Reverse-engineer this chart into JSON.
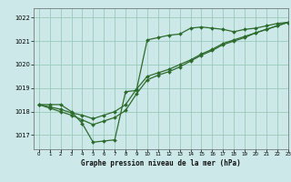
{
  "title": "Graphe pression niveau de la mer (hPa)",
  "bg_color": "#cce8e8",
  "grid_color": "#99ccbb",
  "line_color": "#2d6b2d",
  "xlim": [
    -0.5,
    23
  ],
  "ylim": [
    1016.4,
    1022.4
  ],
  "yticks": [
    1017,
    1018,
    1019,
    1020,
    1021,
    1022
  ],
  "xticks": [
    0,
    1,
    2,
    3,
    4,
    5,
    6,
    7,
    8,
    9,
    10,
    11,
    12,
    13,
    14,
    15,
    16,
    17,
    18,
    19,
    20,
    21,
    22,
    23
  ],
  "s_zigzag": [
    1018.3,
    1018.3,
    1018.3,
    1018.0,
    1017.5,
    1016.7,
    1016.75,
    1016.8,
    1018.85,
    1018.9,
    1021.05,
    1021.15,
    1021.25,
    1021.3,
    1021.55,
    1021.6,
    1021.55,
    1021.5,
    1021.4,
    1021.5,
    1021.55,
    1021.65,
    1021.75,
    1021.8
  ],
  "s_linear": [
    1018.3,
    1018.2,
    1018.1,
    1017.95,
    1017.85,
    1017.7,
    1017.85,
    1018.0,
    1018.3,
    1018.95,
    1019.5,
    1019.65,
    1019.8,
    1020.0,
    1020.2,
    1020.45,
    1020.65,
    1020.9,
    1021.05,
    1021.2,
    1021.35,
    1021.5,
    1021.65,
    1021.8
  ],
  "s_curve": [
    1018.3,
    1018.15,
    1018.0,
    1017.85,
    1017.65,
    1017.45,
    1017.6,
    1017.75,
    1018.05,
    1018.75,
    1019.35,
    1019.55,
    1019.7,
    1019.9,
    1020.15,
    1020.4,
    1020.6,
    1020.85,
    1021.0,
    1021.15,
    1021.35,
    1021.5,
    1021.65,
    1021.8
  ]
}
